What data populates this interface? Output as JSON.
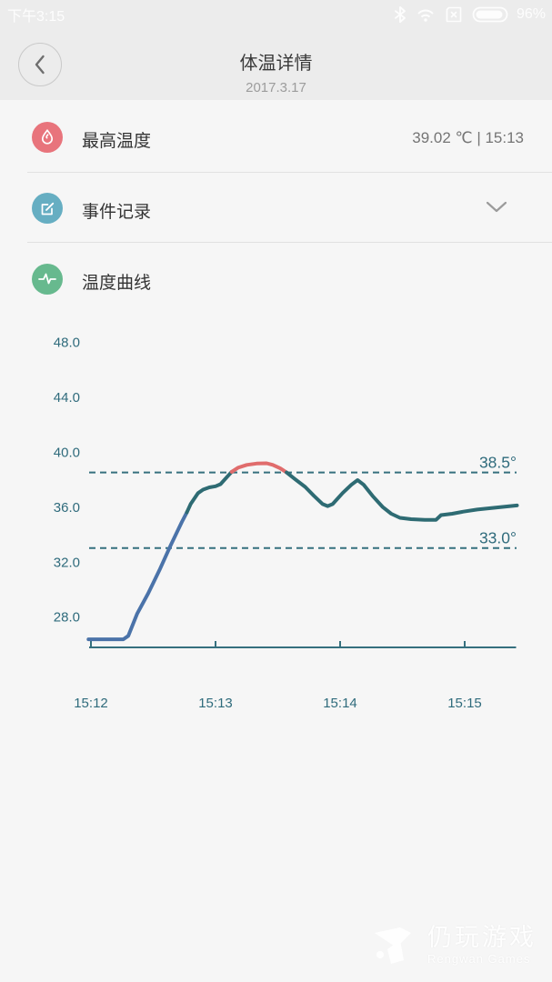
{
  "status_bar": {
    "time": "下午3:15",
    "battery_pct": "96%",
    "icons": [
      "bluetooth-icon",
      "wifi-icon",
      "sim-icon",
      "battery-icon"
    ]
  },
  "header": {
    "title": "体温详情",
    "date": "2017.3.17",
    "back_icon": "chevron-left-icon"
  },
  "items": [
    {
      "label": "最高温度",
      "value": "39.02 ℃ | 15:13",
      "icon": "drop-icon",
      "color": "#e8747c"
    },
    {
      "label": "事件记录",
      "value": "",
      "icon": "edit-icon",
      "color": "#66aec2"
    },
    {
      "label": "温度曲线",
      "value": "",
      "icon": "pulse-icon",
      "color": "#67b98e"
    }
  ],
  "watermark": {
    "title": "仍玩游戏",
    "subtitle": "Rengwan Games"
  },
  "chart_data": {
    "type": "line",
    "title": "温度曲线",
    "xlabel": "",
    "ylabel": "",
    "grid": false,
    "legend": "none",
    "ylim": [
      26,
      49
    ],
    "y_tick_labels": [
      "48.0",
      "44.0",
      "40.0",
      "36.0",
      "32.0",
      "28.0"
    ],
    "y_tick_values": [
      48.0,
      44.0,
      40.0,
      36.0,
      32.0,
      28.0
    ],
    "x_ticks": [
      {
        "label": "15:12",
        "m": 0
      },
      {
        "label": "15:13",
        "m": 1
      },
      {
        "label": "15:14",
        "m": 2
      },
      {
        "label": "15:15",
        "m": 3
      }
    ],
    "thresholds": [
      {
        "value": 38.5,
        "label": "38.5°"
      },
      {
        "value": 33.0,
        "label": "33.0°"
      }
    ],
    "axis_color": "#35707e",
    "series": [
      {
        "name": "low-range",
        "color": "#4b73a9",
        "points": [
          [
            -0.02,
            26.35
          ],
          [
            0.26,
            26.35
          ],
          [
            0.3,
            26.6
          ],
          [
            0.37,
            28.2
          ],
          [
            0.46,
            29.7
          ],
          [
            0.55,
            31.4
          ],
          [
            0.64,
            33.2
          ],
          [
            0.73,
            34.9
          ],
          [
            0.77,
            35.6
          ]
        ]
      },
      {
        "name": "normal-range-rise",
        "color": "#2e6b73",
        "points": [
          [
            0.77,
            35.6
          ],
          [
            0.8,
            36.2
          ],
          [
            0.86,
            37.0
          ],
          [
            0.9,
            37.25
          ],
          [
            0.95,
            37.42
          ],
          [
            1.0,
            37.5
          ],
          [
            1.04,
            37.65
          ],
          [
            1.09,
            38.15
          ],
          [
            1.13,
            38.55
          ]
        ]
      },
      {
        "name": "fever-range",
        "color": "#e06c6c",
        "points": [
          [
            1.13,
            38.55
          ],
          [
            1.18,
            38.85
          ],
          [
            1.25,
            39.05
          ],
          [
            1.33,
            39.15
          ],
          [
            1.41,
            39.17
          ],
          [
            1.46,
            39.05
          ],
          [
            1.52,
            38.8
          ],
          [
            1.57,
            38.5
          ]
        ]
      },
      {
        "name": "normal-range-fall",
        "color": "#2e6b73",
        "points": [
          [
            1.57,
            38.5
          ],
          [
            1.64,
            38.0
          ],
          [
            1.72,
            37.45
          ],
          [
            1.79,
            36.8
          ],
          [
            1.86,
            36.2
          ],
          [
            1.9,
            36.05
          ],
          [
            1.94,
            36.2
          ],
          [
            2.02,
            37.0
          ],
          [
            2.09,
            37.6
          ],
          [
            2.14,
            37.95
          ],
          [
            2.19,
            37.6
          ],
          [
            2.26,
            36.8
          ],
          [
            2.34,
            36.0
          ],
          [
            2.41,
            35.5
          ],
          [
            2.48,
            35.2
          ],
          [
            2.57,
            35.1
          ],
          [
            2.68,
            35.05
          ],
          [
            2.77,
            35.05
          ],
          [
            2.81,
            35.4
          ],
          [
            2.9,
            35.5
          ],
          [
            2.99,
            35.65
          ],
          [
            3.1,
            35.8
          ],
          [
            3.25,
            35.95
          ],
          [
            3.42,
            36.1
          ]
        ]
      }
    ]
  }
}
